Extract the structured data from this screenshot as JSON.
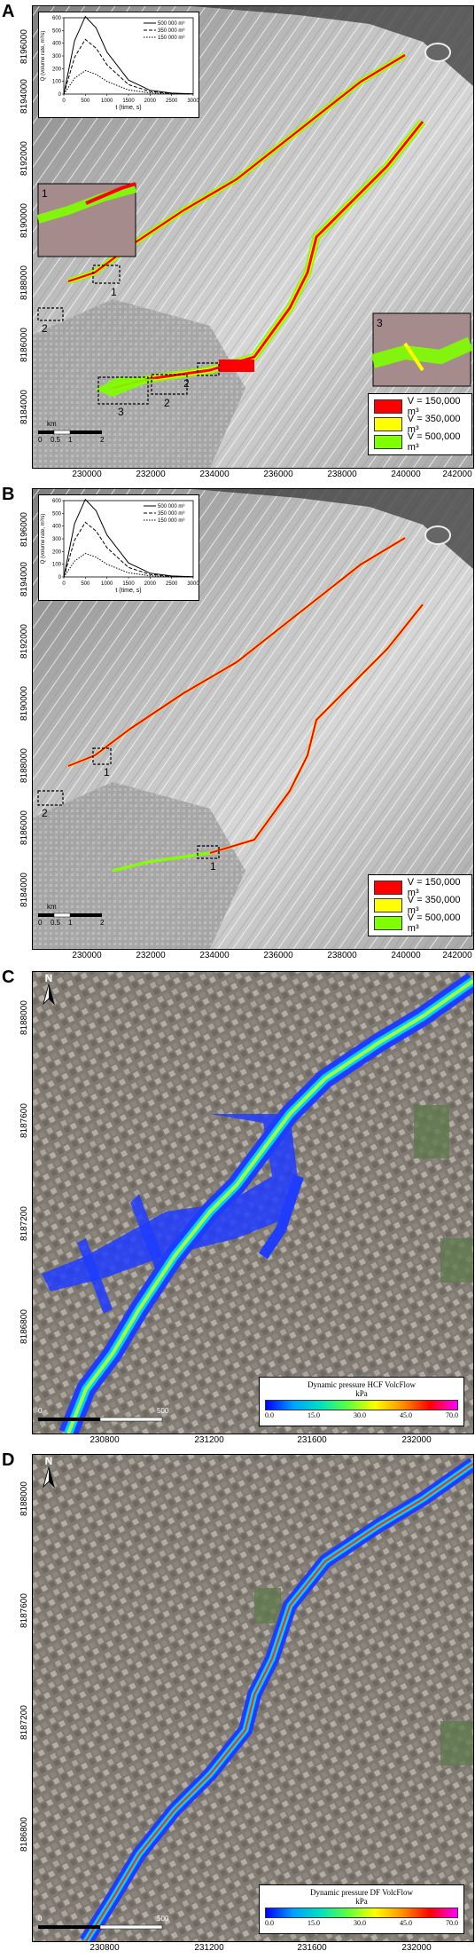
{
  "panels": [
    {
      "letter": "A",
      "xticks": [
        "230000",
        "232000",
        "234000",
        "236000",
        "238000",
        "240000",
        "242000"
      ],
      "yticks": [
        "8184000",
        "8186000",
        "8188000",
        "8190000",
        "8192000",
        "8194000",
        "8196000"
      ],
      "legend": [
        "V = 150,000 m³",
        "V = 350,000 m³",
        "V = 500,000 m³"
      ],
      "zoom_labels": [
        "1",
        "2",
        "3",
        "2",
        "2",
        "1",
        "3"
      ],
      "scale_unit": "km",
      "scale_ticks": [
        "0",
        "0.5",
        "1",
        "2"
      ]
    },
    {
      "letter": "B",
      "xticks": [
        "230000",
        "232000",
        "234000",
        "236000",
        "238000",
        "240000",
        "242000"
      ],
      "yticks": [
        "8184000",
        "8186000",
        "8188000",
        "8190000",
        "8192000",
        "8194000",
        "8196000"
      ],
      "legend": [
        "V = 150,000 m³",
        "V = 350,000 m³",
        "V = 500,000 m³"
      ],
      "zoom_labels": [
        "2",
        "1",
        "1"
      ],
      "scale_unit": "km",
      "scale_ticks": [
        "0",
        "0.5",
        "1",
        "2"
      ]
    },
    {
      "letter": "C",
      "xticks": [
        "230800",
        "231200",
        "231600",
        "232000"
      ],
      "yticks": [
        "8186800",
        "8187200",
        "8187600",
        "8188000"
      ],
      "legend_title": "Dynamic pressure HCF VolcFlow",
      "legend_unit": "kPa",
      "legend_ticks": [
        "0.0",
        "15.0",
        "30.0",
        "45.0",
        "70.0"
      ],
      "north": "N",
      "scale_ticks": [
        "0",
        "500"
      ]
    },
    {
      "letter": "D",
      "xticks": [
        "230800",
        "231200",
        "231600",
        "232000"
      ],
      "yticks": [
        "8186800",
        "8187200",
        "8187600",
        "8188000"
      ],
      "legend_title": "Dynamic pressure DF VolcFlow",
      "legend_unit": "kPa",
      "legend_ticks": [
        "0.0",
        "15.0",
        "30.0",
        "45.0",
        "70.0"
      ],
      "north": "N",
      "scale_ticks": [
        "0",
        "500"
      ]
    }
  ],
  "hydrograph": {
    "ylabel": "Q (volume rate, m³/s)",
    "xlabel": "t (time, s)",
    "xticks": [
      "0",
      "500",
      "1000",
      "1500",
      "2000",
      "2500",
      "3000"
    ],
    "yticks": [
      "0",
      "100",
      "200",
      "300",
      "400",
      "500",
      "600"
    ],
    "legend": [
      "500 000 m³",
      "350 000 m³",
      "150 000 m³"
    ],
    "series": [
      {
        "t": [
          0,
          250,
          500,
          750,
          1000,
          1500,
          2000,
          2500,
          3000
        ],
        "q": [
          0,
          420,
          610,
          520,
          330,
          110,
          30,
          8,
          2
        ]
      },
      {
        "t": [
          0,
          250,
          500,
          750,
          1000,
          1500,
          2000,
          2500,
          3000
        ],
        "q": [
          0,
          290,
          430,
          360,
          230,
          75,
          20,
          5,
          1
        ]
      },
      {
        "t": [
          0,
          250,
          500,
          750,
          1000,
          1500,
          2000,
          2500,
          3000
        ],
        "q": [
          0,
          125,
          185,
          155,
          100,
          33,
          9,
          2,
          0
        ]
      }
    ]
  },
  "colors": {
    "v150": "#ff0000",
    "v350": "#ffff00",
    "v500": "#80ff00"
  }
}
